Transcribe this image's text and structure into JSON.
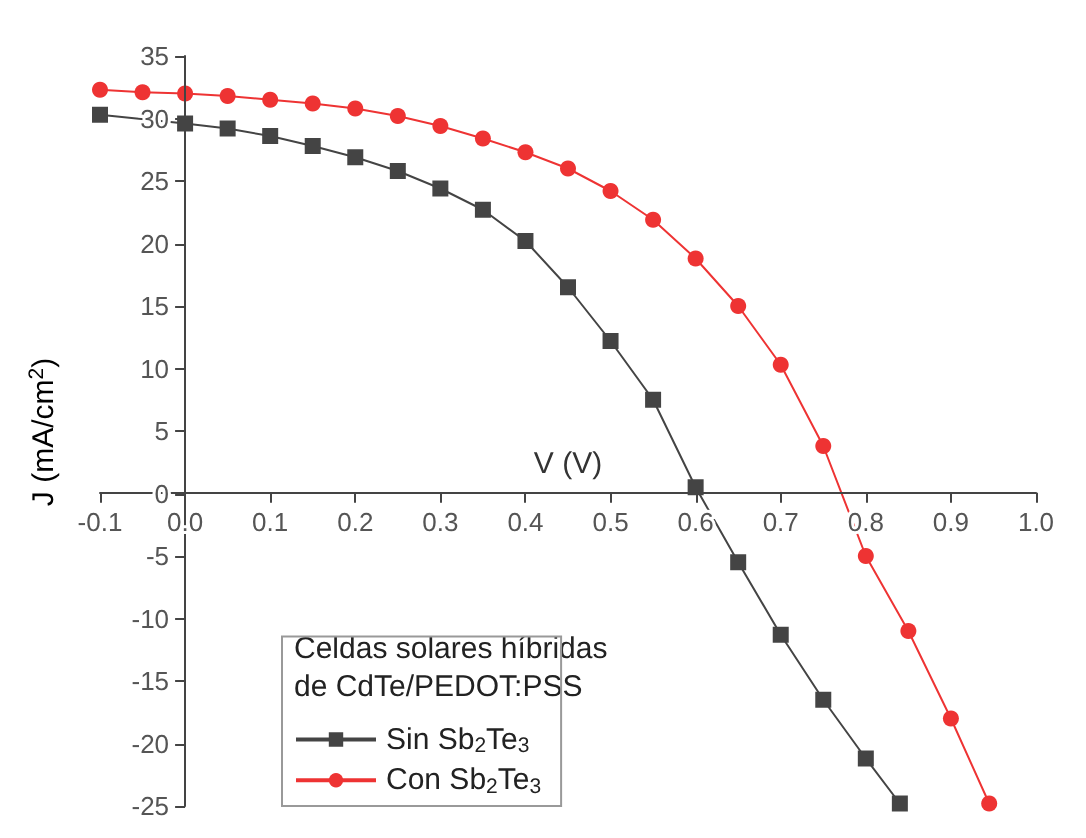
{
  "chart_data": {
    "type": "line",
    "xlabel": "V (V)",
    "ylabel": "J (mA/cm$^{2}$)",
    "legend_title": "Celdas solares híbridas\nde CdTe/PEDOT:PSS",
    "legend": "bottom",
    "xlim": [
      -0.1,
      1.0
    ],
    "ylim": [
      -25,
      35
    ],
    "xticks": [
      {
        "value": -0.1,
        "label": "-0.1"
      },
      {
        "value": 0,
        "label": "0.0"
      },
      {
        "value": 0.1,
        "label": "0.1"
      },
      {
        "value": 0.2,
        "label": "0.2"
      },
      {
        "value": 0.3,
        "label": "0.3"
      },
      {
        "value": 0.4,
        "label": "0.4"
      },
      {
        "value": 0.5,
        "label": "0.5"
      },
      {
        "value": 0.6,
        "label": "0.6"
      },
      {
        "value": 0.7,
        "label": "0.7"
      },
      {
        "value": 0.8,
        "label": "0.8"
      },
      {
        "value": 0.9,
        "label": "0.9"
      },
      {
        "value": 1.0,
        "label": "1.0"
      }
    ],
    "yticks": [
      -25,
      -20,
      -15,
      -10,
      -5,
      0,
      5,
      10,
      15,
      20,
      25,
      30,
      35
    ],
    "series": [
      {
        "name": "Sin Sb$_{2}$Te$_{3}$",
        "color": "#444444",
        "marker": "square",
        "x": [
          -0.1,
          0,
          0.05,
          0.1,
          0.15,
          0.2,
          0.25,
          0.3,
          0.35,
          0.4,
          0.45,
          0.5,
          0.55,
          0.6,
          0.65,
          0.7,
          0.75,
          0.8,
          0.84
        ],
        "values": [
          30.3,
          29.6,
          29.2,
          28.6,
          27.8,
          26.9,
          25.8,
          24.4,
          22.7,
          20.2,
          16.5,
          12.2,
          7.5,
          0.5,
          -5.5,
          -11.3,
          -16.5,
          -21.2,
          -24.8
        ]
      },
      {
        "name": "Con Sb$_{2}$Te$_{3}$",
        "color": "#ee3333",
        "marker": "circle",
        "x": [
          -0.1,
          -0.05,
          0,
          0.05,
          0.1,
          0.15,
          0.2,
          0.25,
          0.3,
          0.35,
          0.4,
          0.45,
          0.5,
          0.55,
          0.6,
          0.65,
          0.7,
          0.75,
          0.8,
          0.85,
          0.9,
          0.945
        ],
        "values": [
          32.3,
          32.1,
          32.0,
          31.8,
          31.5,
          31.2,
          30.8,
          30.2,
          29.4,
          28.4,
          27.3,
          26.0,
          24.2,
          21.9,
          18.8,
          15.0,
          10.3,
          3.8,
          -5.0,
          -11.0,
          -18.0,
          -24.8
        ]
      }
    ]
  }
}
